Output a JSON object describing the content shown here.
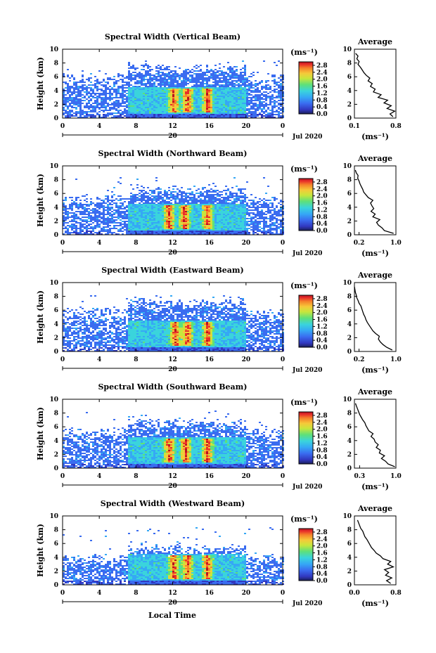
{
  "chart_data": [
    {
      "type": "heatmap",
      "title": "Spectral Width (Vertical Beam)",
      "ylabel": "Height (km)",
      "xlabel": "",
      "x_ticks": [
        "0",
        "4",
        "8",
        "12",
        "16",
        "20",
        "0"
      ],
      "y_ticks": [
        "0",
        "2",
        "4",
        "6",
        "8",
        "10"
      ],
      "xlim": [
        0,
        24
      ],
      "ylim": [
        0,
        10
      ],
      "date_day": "20",
      "date_month": "Jul 2020",
      "colorbar_unit": "(ms⁻¹)",
      "colorbar_ticks": [
        "0.0",
        "0.4",
        "0.8",
        "1.2",
        "1.6",
        "2.0",
        "2.4",
        "2.8"
      ],
      "colorbar_range": [
        0,
        3.0
      ],
      "max_height_km": 7.2,
      "hotspots_hour": [
        12,
        13.5,
        15.7
      ],
      "average": {
        "title": "Average",
        "unit": "(ms⁻¹)",
        "x_ticks": [
          "0.1",
          "0.8"
        ],
        "xlim": [
          0.1,
          0.8
        ],
        "height": [
          0.2,
          0.6,
          1.0,
          1.4,
          1.8,
          2.2,
          2.6,
          3.0,
          3.4,
          3.8,
          4.2,
          4.6,
          5.0,
          5.4,
          5.8,
          6.2,
          6.6,
          7.0,
          7.4,
          7.8,
          8.2,
          8.6,
          9.0,
          9.4
        ],
        "value": [
          0.75,
          0.7,
          0.78,
          0.65,
          0.72,
          0.6,
          0.66,
          0.5,
          0.55,
          0.42,
          0.45,
          0.37,
          0.4,
          0.33,
          0.36,
          0.3,
          0.26,
          0.23,
          0.2,
          0.16,
          0.18,
          0.14,
          0.16,
          0.12
        ]
      }
    },
    {
      "type": "heatmap",
      "title": "Spectral Width (Northward Beam)",
      "ylabel": "Height (km)",
      "xlabel": "",
      "x_ticks": [
        "0",
        "4",
        "8",
        "12",
        "16",
        "20",
        "0"
      ],
      "y_ticks": [
        "0",
        "2",
        "4",
        "6",
        "8",
        "10"
      ],
      "xlim": [
        0,
        24
      ],
      "ylim": [
        0,
        10
      ],
      "date_day": "20",
      "date_month": "Jul 2020",
      "colorbar_unit": "(ms⁻¹)",
      "colorbar_ticks": [
        "0.0",
        "0.4",
        "0.8",
        "1.2",
        "1.6",
        "2.0",
        "2.4",
        "2.8"
      ],
      "colorbar_range": [
        0,
        3.0
      ],
      "max_height_km": 6.5,
      "hotspots_hour": [
        11.5,
        13.2,
        15.7
      ],
      "average": {
        "title": "Average",
        "unit": "(ms⁻¹)",
        "x_ticks": [
          "0.2",
          "1.0"
        ],
        "xlim": [
          0.1,
          1.0
        ],
        "height": [
          0.2,
          0.6,
          1.0,
          1.4,
          1.8,
          2.2,
          2.6,
          3.0,
          3.4,
          3.8,
          4.2,
          4.6,
          5.0,
          5.4,
          5.8,
          6.2,
          6.6,
          7.0,
          7.4,
          7.8,
          8.2,
          8.6,
          9.0,
          9.4
        ],
        "value": [
          0.95,
          0.75,
          0.7,
          0.62,
          0.58,
          0.65,
          0.5,
          0.55,
          0.46,
          0.52,
          0.48,
          0.45,
          0.5,
          0.4,
          0.35,
          0.3,
          0.28,
          0.25,
          0.22,
          0.2,
          0.17,
          0.18,
          0.14,
          0.12
        ]
      }
    },
    {
      "type": "heatmap",
      "title": "Spectral Width (Eastward Beam)",
      "ylabel": "Height (km)",
      "xlabel": "",
      "x_ticks": [
        "0",
        "4",
        "8",
        "12",
        "16",
        "20",
        "0"
      ],
      "y_ticks": [
        "0",
        "2",
        "4",
        "6",
        "8",
        "10"
      ],
      "xlim": [
        0,
        24
      ],
      "ylim": [
        0,
        10
      ],
      "date_day": "20",
      "date_month": "Jul 2020",
      "colorbar_unit": "(ms⁻¹)",
      "colorbar_ticks": [
        "0.0",
        "0.4",
        "0.8",
        "1.2",
        "1.6",
        "2.0",
        "2.4",
        "2.8"
      ],
      "colorbar_range": [
        0,
        3.0
      ],
      "max_height_km": 7.0,
      "hotspots_hour": [
        12.2,
        13.5,
        15.7
      ],
      "average": {
        "title": "Average",
        "unit": "(ms⁻¹)",
        "x_ticks": [
          "0.2",
          "1.0"
        ],
        "xlim": [
          0.1,
          1.0
        ],
        "height": [
          0.2,
          0.6,
          1.0,
          1.4,
          1.8,
          2.2,
          2.6,
          3.0,
          3.4,
          3.8,
          4.2,
          4.6,
          5.0,
          5.4,
          5.8,
          6.2,
          6.6,
          7.0,
          7.4,
          7.8,
          8.2,
          8.6,
          9.0,
          9.4
        ],
        "value": [
          0.92,
          0.8,
          0.72,
          0.66,
          0.62,
          0.64,
          0.56,
          0.5,
          0.46,
          0.42,
          0.38,
          0.35,
          0.33,
          0.3,
          0.28,
          0.26,
          0.24,
          0.2,
          0.18,
          0.15,
          0.14,
          0.12,
          0.11,
          0.1
        ]
      }
    },
    {
      "type": "heatmap",
      "title": "Spectral Width (Southward Beam)",
      "ylabel": "Height (km)",
      "xlabel": "",
      "x_ticks": [
        "0",
        "4",
        "8",
        "12",
        "16",
        "20",
        "0"
      ],
      "y_ticks": [
        "0",
        "2",
        "4",
        "6",
        "8",
        "10"
      ],
      "xlim": [
        0,
        24
      ],
      "ylim": [
        0,
        10
      ],
      "date_day": "20",
      "date_month": "Jul 2020",
      "colorbar_unit": "(ms⁻¹)",
      "colorbar_ticks": [
        "0.0",
        "0.4",
        "0.8",
        "1.2",
        "1.6",
        "2.0",
        "2.4",
        "2.8"
      ],
      "colorbar_range": [
        0,
        3.0
      ],
      "max_height_km": 6.5,
      "hotspots_hour": [
        11.5,
        13.3,
        15.7
      ],
      "average": {
        "title": "Average",
        "unit": "(ms⁻¹)",
        "x_ticks": [
          "0.3",
          "1.0"
        ],
        "xlim": [
          0.2,
          1.0
        ],
        "height": [
          0.2,
          0.6,
          1.0,
          1.4,
          1.8,
          2.2,
          2.6,
          3.0,
          3.4,
          3.8,
          4.2,
          4.6,
          5.0,
          5.4,
          5.8,
          6.2,
          6.6,
          7.0,
          7.4,
          7.8,
          8.2,
          8.6,
          9.0,
          9.4
        ],
        "value": [
          0.98,
          0.85,
          0.8,
          0.72,
          0.78,
          0.68,
          0.7,
          0.62,
          0.66,
          0.6,
          0.58,
          0.52,
          0.56,
          0.48,
          0.45,
          0.42,
          0.4,
          0.36,
          0.33,
          0.3,
          0.28,
          0.26,
          0.24,
          0.22
        ]
      }
    },
    {
      "type": "heatmap",
      "title": "Spectral Width (Westward Beam)",
      "ylabel": "Height (km)",
      "xlabel": "Local Time",
      "x_ticks": [
        "0",
        "4",
        "8",
        "12",
        "16",
        "20",
        "0"
      ],
      "y_ticks": [
        "0",
        "2",
        "4",
        "6",
        "8",
        "10"
      ],
      "xlim": [
        0,
        24
      ],
      "ylim": [
        0,
        10
      ],
      "date_day": "20",
      "date_month": "Jul 2020",
      "colorbar_unit": "(ms⁻¹)",
      "colorbar_ticks": [
        "0.0",
        "0.4",
        "0.8",
        "1.2",
        "1.6",
        "2.0",
        "2.4",
        "2.8"
      ],
      "colorbar_range": [
        0,
        3.0
      ],
      "max_height_km": 5.0,
      "hotspots_hour": [
        12.0,
        13.5,
        15.7
      ],
      "average": {
        "title": "Average",
        "unit": "(ms⁻¹)",
        "x_ticks": [
          "0.0",
          "0.8"
        ],
        "xlim": [
          0.0,
          0.8
        ],
        "height": [
          0.2,
          0.6,
          1.0,
          1.4,
          1.8,
          2.2,
          2.6,
          3.0,
          3.4,
          3.8,
          4.2,
          4.6,
          5.0,
          5.4,
          5.8,
          6.2,
          6.6,
          7.0,
          7.4,
          7.8,
          8.2,
          8.6,
          9.0,
          9.4
        ],
        "value": [
          0.7,
          0.62,
          0.72,
          0.6,
          0.66,
          0.58,
          0.75,
          0.64,
          0.7,
          0.55,
          0.5,
          0.42,
          0.38,
          0.33,
          0.3,
          0.27,
          0.24,
          0.2,
          0.18,
          0.16,
          0.12,
          0.1,
          0.08,
          0.06
        ]
      }
    }
  ],
  "colors": {
    "scale": [
      "#1a1f5a",
      "#3138c0",
      "#3a6cf0",
      "#35a8f5",
      "#3ad4dc",
      "#5ee07a",
      "#c7e63c",
      "#f6c93a",
      "#f5832a",
      "#e8302a",
      "#b71220"
    ]
  }
}
